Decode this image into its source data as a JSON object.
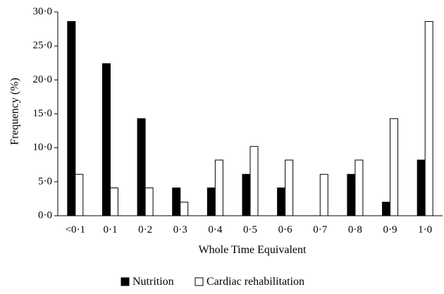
{
  "chart_data": {
    "type": "bar",
    "title": "",
    "xlabel": "Whole Time Equivalent",
    "ylabel": "Frequency (%)",
    "ylim": [
      0,
      30
    ],
    "yticks": [
      "0·0",
      "5·0",
      "10·0",
      "15·0",
      "20·0",
      "25·0",
      "30·0"
    ],
    "categories": [
      "<0·1",
      "0·1",
      "0·2",
      "0·3",
      "0·4",
      "0·5",
      "0·6",
      "0·7",
      "0·8",
      "0·9",
      "1·0"
    ],
    "series": [
      {
        "name": "Nutrition",
        "color": "#000000",
        "values": [
          28.6,
          22.4,
          14.3,
          4.1,
          4.1,
          6.1,
          4.1,
          0.0,
          6.1,
          2.0,
          8.2
        ]
      },
      {
        "name": "Cardiac rehabilitation",
        "color": "#ffffff",
        "values": [
          6.1,
          4.1,
          4.1,
          2.0,
          8.2,
          10.2,
          8.2,
          6.1,
          8.2,
          14.3,
          28.6
        ]
      }
    ],
    "grid": false,
    "legend_position": "bottom"
  }
}
